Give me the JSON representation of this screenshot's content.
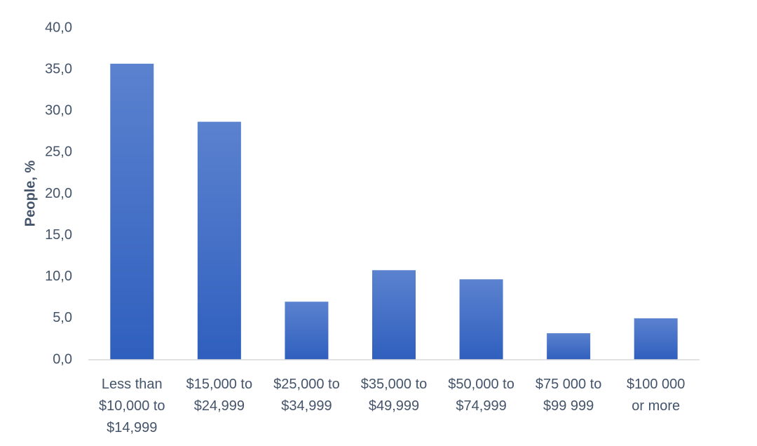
{
  "chart_data": {
    "type": "bar",
    "title": "",
    "xlabel": "",
    "ylabel": "People, %",
    "ylim": [
      0,
      40
    ],
    "ytick_step": 5,
    "ytick_labels": [
      "0,0",
      "5,0",
      "10,0",
      "15,0",
      "20,0",
      "25,0",
      "30,0",
      "35,0",
      "40,0"
    ],
    "grid": false,
    "categories": [
      "Less than $10,000 to $14,999",
      "$15,000 to $24,999",
      "$25,000 to $34,999",
      "$35,000 to $49,999",
      "$50,000 to $74,999",
      "$75 000 to $99 999",
      "$100 000 or more"
    ],
    "category_lines": [
      [
        "Less than",
        "$10,000 to",
        "$14,999"
      ],
      [
        "$15,000 to",
        "$24,999"
      ],
      [
        "$25,000 to",
        "$34,999"
      ],
      [
        "$35,000 to",
        "$49,999"
      ],
      [
        "$50,000 to",
        "$74,999"
      ],
      [
        "$75 000 to",
        "$99 999"
      ],
      [
        "$100 000",
        "or more"
      ]
    ],
    "values": [
      35.7,
      28.7,
      7.0,
      10.8,
      9.7,
      3.2,
      5.0
    ],
    "colors": {
      "bar_top": "#5b82cf",
      "bar_bottom": "#2f5fbe",
      "axis_line": "#d9d9d9",
      "text": "#44546a"
    }
  }
}
